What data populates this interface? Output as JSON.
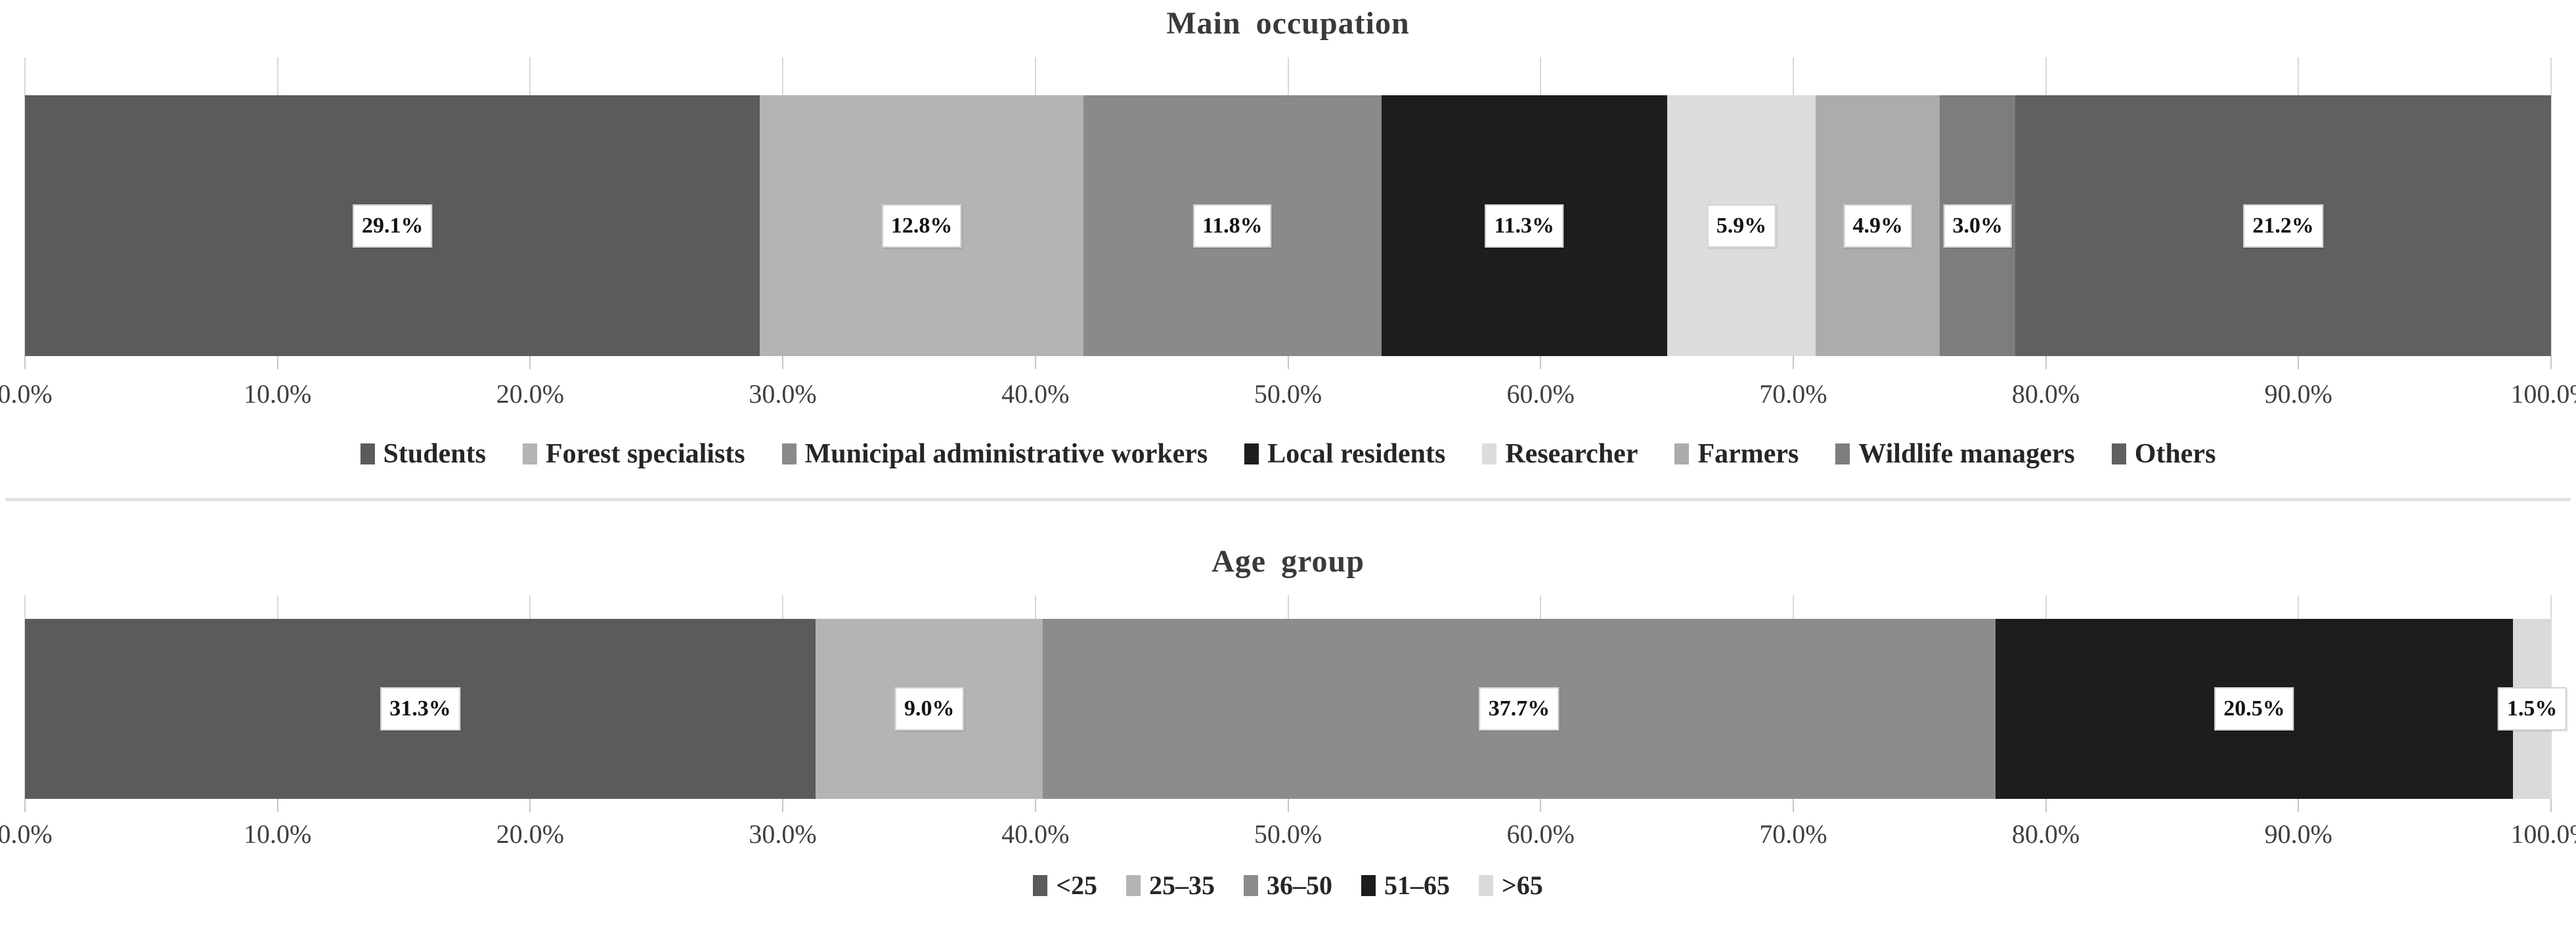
{
  "chart_data": [
    {
      "type": "bar",
      "variant": "horizontal-stacked",
      "title": "Main occupation",
      "xlabel": "",
      "ylabel": "",
      "xlim": [
        0,
        100
      ],
      "grid": true,
      "legend_position": "bottom",
      "x_tick_labels": [
        "0.0%",
        "10.0%",
        "20.0%",
        "30.0%",
        "40.0%",
        "50.0%",
        "60.0%",
        "70.0%",
        "80.0%",
        "90.0%",
        "100.0%"
      ],
      "series": [
        {
          "name": "Students",
          "value": 29.1,
          "label": "29.1%",
          "color": "#5b5b5b"
        },
        {
          "name": "Forest specialists",
          "value": 12.8,
          "label": "12.8%",
          "color": "#b4b4b4"
        },
        {
          "name": "Municipal administrative workers",
          "value": 11.8,
          "label": "11.8%",
          "color": "#8a8a8a"
        },
        {
          "name": "Local residents",
          "value": 11.3,
          "label": "11.3%",
          "color": "#1d1d1d"
        },
        {
          "name": "Researcher",
          "value": 5.9,
          "label": "5.9%",
          "color": "#dcdcdc"
        },
        {
          "name": "Farmers",
          "value": 4.9,
          "label": "4.9%",
          "color": "#acacac"
        },
        {
          "name": "Wildlife managers",
          "value": 3.0,
          "label": "3.0%",
          "color": "#7d7d7d"
        },
        {
          "name": "Others",
          "value": 21.2,
          "label": "21.2%",
          "color": "#606060"
        }
      ]
    },
    {
      "type": "bar",
      "variant": "horizontal-stacked",
      "title": "Age group",
      "xlabel": "",
      "ylabel": "",
      "xlim": [
        0,
        100
      ],
      "grid": true,
      "legend_position": "bottom",
      "x_tick_labels": [
        "0.0%",
        "10.0%",
        "20.0%",
        "30.0%",
        "40.0%",
        "50.0%",
        "60.0%",
        "70.0%",
        "80.0%",
        "90.0%",
        "100.0%"
      ],
      "series": [
        {
          "name": "<25",
          "value": 31.3,
          "label": "31.3%",
          "color": "#5b5b5b"
        },
        {
          "name": "25–35",
          "value": 9.0,
          "label": "9.0%",
          "color": "#b4b4b4"
        },
        {
          "name": "36–50",
          "value": 37.7,
          "label": "37.7%",
          "color": "#8c8c8c"
        },
        {
          "name": "51–65",
          "value": 20.5,
          "label": "20.5%",
          "color": "#1d1d1d"
        },
        {
          "name": ">65",
          "value": 1.5,
          "label": "1.5%",
          "color": "#dadada"
        }
      ]
    }
  ]
}
